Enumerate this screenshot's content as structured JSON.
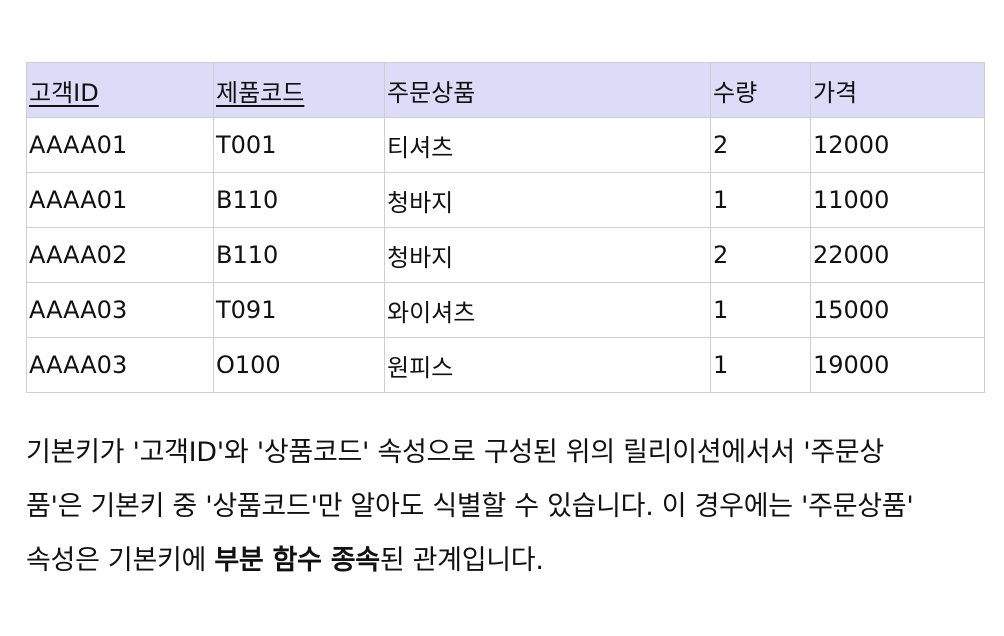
{
  "table": {
    "headers": [
      {
        "label": "고객ID",
        "key": true
      },
      {
        "label": "제품코드",
        "key": true
      },
      {
        "label": "주문상품",
        "key": false
      },
      {
        "label": "수량",
        "key": false
      },
      {
        "label": "가격",
        "key": false
      }
    ],
    "rows": [
      [
        "AAAA01",
        "T001",
        "티셔츠",
        "2",
        "12000"
      ],
      [
        "AAAA01",
        "B110",
        "청바지",
        "1",
        "11000"
      ],
      [
        "AAAA02",
        "B110",
        "청바지",
        "2",
        "22000"
      ],
      [
        "AAAA03",
        "T091",
        "와이셔츠",
        "1",
        "15000"
      ],
      [
        "AAAA03",
        "O100",
        "원피스",
        "1",
        "19000"
      ]
    ]
  },
  "paragraph": {
    "line1": "기본키가 '고객ID'와 '상품코드' 속성으로 구성된 위의 릴리이션에서서 '주문상",
    "line2": "품'은 기본키 중 '상품코드'만 알아도 식별할 수 있습니다. 이 경우에는 '주문상품'",
    "line3_before": "속성은 기본키에 ",
    "line3_bold": "부분 함수 종속",
    "line3_after": "된 관계입니다."
  }
}
